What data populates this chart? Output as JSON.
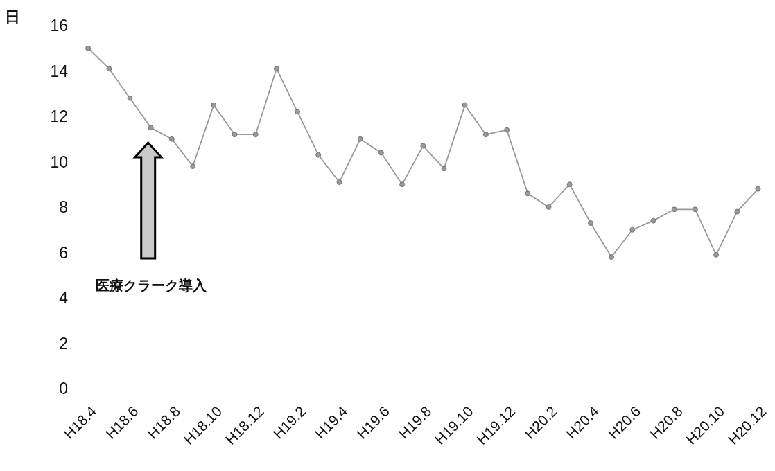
{
  "chart_data": {
    "type": "line",
    "ylabel": "日",
    "categories": [
      "H18.4",
      null,
      "H18.6",
      null,
      "H18.8",
      null,
      "H18.10",
      null,
      "H18.12",
      null,
      "H19.2",
      null,
      "H19.4",
      null,
      "H19.6",
      null,
      "H19.8",
      null,
      "H19.10",
      null,
      "H19.12",
      null,
      "H20.2",
      null,
      "H20.4",
      null,
      "H20.6",
      null,
      "H20.8",
      null,
      "H20.10",
      null,
      "H20.12"
    ],
    "series": [
      {
        "color": "#999999",
        "values": [
          15.0,
          14.1,
          12.8,
          11.5,
          11.0,
          9.8,
          12.5,
          11.2,
          11.2,
          14.1,
          12.2,
          10.3,
          9.1,
          11.0,
          10.4,
          9.0,
          10.7,
          9.7,
          12.5,
          11.2,
          11.4,
          8.6,
          8.0,
          9.0,
          7.3,
          5.8,
          7.0,
          7.4,
          7.9,
          7.9,
          5.9,
          7.8,
          8.8
        ]
      }
    ],
    "ylim": [
      0,
      16
    ],
    "yticks": [
      0,
      2,
      4,
      6,
      8,
      10,
      12,
      14,
      16
    ],
    "marker": "circle",
    "annotations": [
      "医療クラーク導入"
    ]
  }
}
